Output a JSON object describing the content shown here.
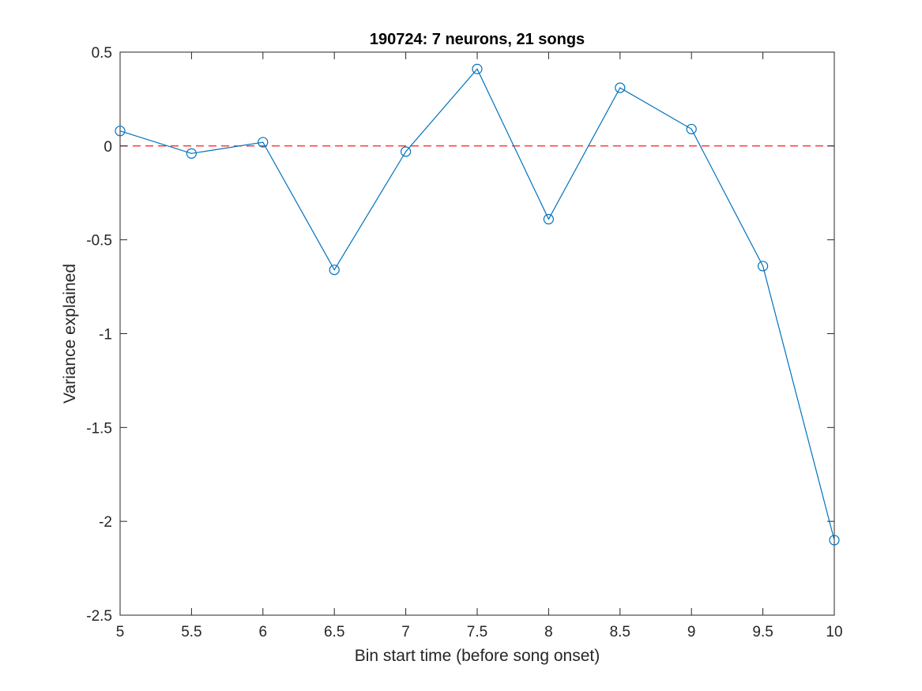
{
  "chart_data": {
    "type": "line",
    "title": "190724: 7 neurons, 21 songs",
    "xlabel": "Bin start time (before song onset)",
    "ylabel": "Variance explained",
    "xlim": [
      5,
      10
    ],
    "ylim": [
      -2.5,
      0.5
    ],
    "xticks": [
      5,
      5.5,
      6,
      6.5,
      7,
      7.5,
      8,
      8.5,
      9,
      9.5,
      10
    ],
    "xtick_labels": [
      "5",
      "5.5",
      "6",
      "6.5",
      "7",
      "7.5",
      "8",
      "8.5",
      "9",
      "9.5",
      "10"
    ],
    "yticks": [
      0.5,
      0,
      -0.5,
      -1,
      -1.5,
      -2,
      -2.5
    ],
    "ytick_labels": [
      "0.5",
      "0",
      "-0.5",
      "-1",
      "-1.5",
      "-2",
      "-2.5"
    ],
    "grid": false,
    "series": [
      {
        "x": [
          5,
          5.5,
          6,
          6.5,
          7,
          7.5,
          8,
          8.5,
          9,
          9.5,
          10
        ],
        "y": [
          0.08,
          -0.04,
          0.02,
          -0.66,
          -0.03,
          0.41,
          -0.39,
          0.31,
          0.09,
          -0.64,
          -2.1
        ],
        "color": "#0072BD",
        "marker": "circle"
      }
    ],
    "reference_line": {
      "y": 0,
      "color": "#FF0000",
      "style": "dashed"
    }
  }
}
